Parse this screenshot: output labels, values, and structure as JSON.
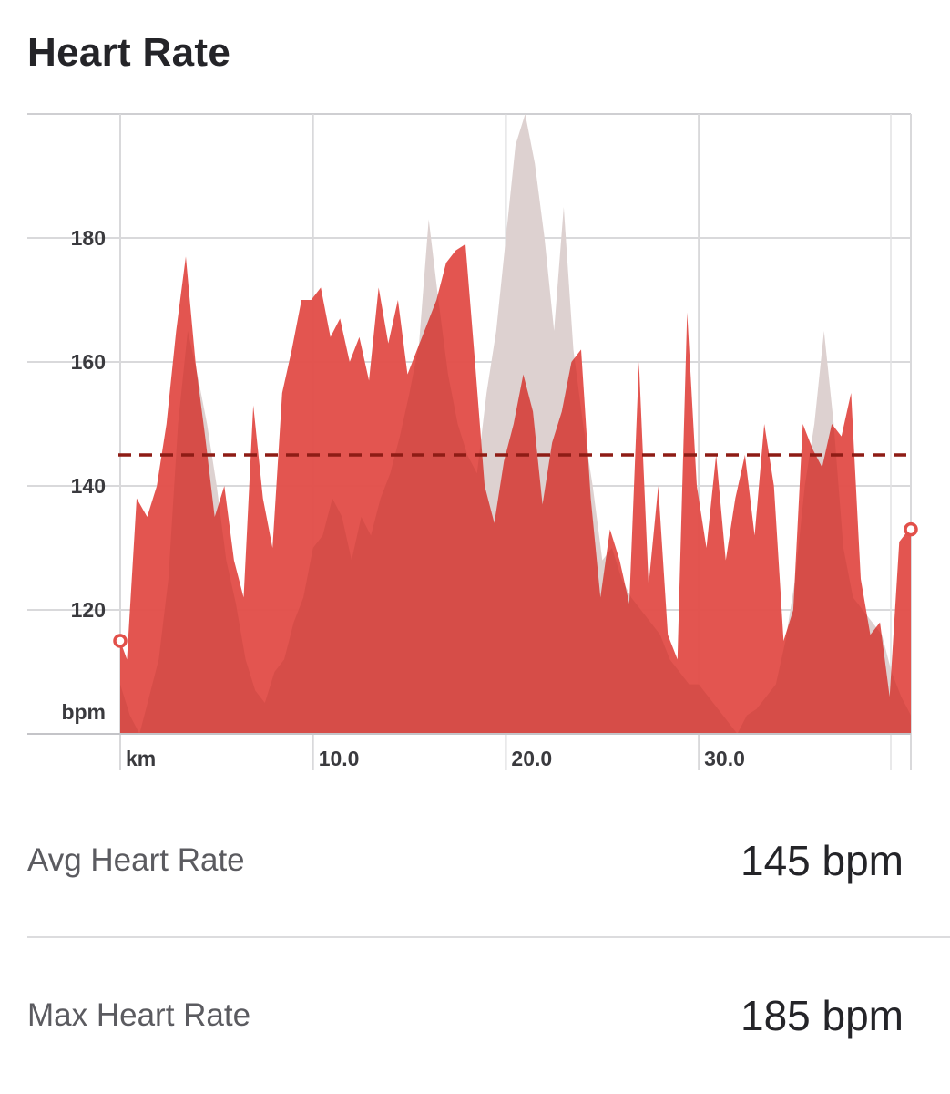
{
  "header": {
    "title": "Heart Rate"
  },
  "chart_data": {
    "type": "area",
    "title": "Heart Rate",
    "ylabel": "bpm",
    "xlabel": "km",
    "ylim": [
      100,
      200
    ],
    "xlim": [
      0,
      41
    ],
    "y_ticks": [
      120,
      140,
      160,
      180
    ],
    "x_ticks": [
      10,
      20,
      30
    ],
    "x_tick_labels": [
      "km",
      "10.0",
      "20.0",
      "30.0"
    ],
    "grid": true,
    "average_line": 145,
    "colors": {
      "primary": "#E2504A",
      "comparison": "#EBEBEB",
      "average": "#8E1C15",
      "marker": "#E2504A"
    },
    "series": [
      {
        "x": [
          0,
          0.35,
          0.85,
          1.4,
          1.9,
          2.4,
          2.9,
          3.4,
          3.9,
          4.4,
          4.9,
          5.4,
          5.9,
          6.4,
          6.9,
          7.4,
          7.9,
          8.4,
          8.9,
          9.4,
          9.9,
          10.4,
          10.9,
          11.4,
          11.9,
          12.4,
          12.9,
          13.4,
          13.9,
          14.4,
          14.9,
          15.4,
          15.9,
          16.4,
          16.9,
          17.4,
          17.9,
          18.4,
          18.9,
          19.4,
          19.9,
          20.4,
          20.9,
          21.4,
          21.9,
          22.4,
          22.9,
          23.4,
          23.9,
          24.4,
          24.9,
          25.4,
          25.9,
          26.4,
          26.9,
          27.4,
          27.9,
          28.4,
          28.9,
          29.4,
          29.9,
          30.4,
          30.9,
          31.4,
          31.9,
          32.4,
          32.9,
          33.4,
          33.9,
          34.4,
          34.9,
          35.4,
          35.9,
          36.4,
          36.9,
          37.4,
          37.9,
          38.4,
          38.9,
          39.4,
          39.9,
          40.4,
          40.9,
          41
        ],
        "values": [
          115,
          112,
          138,
          135,
          140,
          150,
          165,
          177,
          160,
          148,
          135,
          140,
          128,
          122,
          153,
          138,
          130,
          155,
          162,
          170,
          170,
          172,
          164,
          167,
          160,
          164,
          157,
          172,
          163,
          170,
          158,
          162,
          166,
          170,
          176,
          178,
          179,
          160,
          140,
          134,
          144,
          150,
          158,
          152,
          137,
          147,
          152,
          160,
          162,
          138,
          122,
          133,
          128,
          121,
          160,
          124,
          140,
          116,
          112,
          168,
          140,
          130,
          145,
          128,
          138,
          145,
          132,
          150,
          140,
          115,
          120,
          150,
          146,
          143,
          150,
          148,
          155,
          125,
          116,
          118,
          106,
          131,
          133,
          133
        ]
      },
      {
        "x": [
          0,
          0.5,
          1,
          1.5,
          2,
          2.5,
          3,
          3.5,
          4,
          4.5,
          5,
          5.5,
          6,
          6.5,
          7,
          7.5,
          8,
          8.5,
          9,
          9.5,
          10,
          10.5,
          11,
          11.5,
          12,
          12.5,
          13,
          13.5,
          14,
          14.5,
          15,
          15.5,
          16,
          16.5,
          17,
          17.5,
          18,
          18.5,
          19,
          19.5,
          20,
          20.5,
          21,
          21.5,
          22,
          22.5,
          23,
          23.5,
          24,
          24.5,
          25,
          25.5,
          26,
          26.5,
          27,
          27.5,
          28,
          28.5,
          29,
          29.5,
          30,
          30.5,
          31,
          31.5,
          32,
          32.5,
          33,
          33.5,
          34,
          34.5,
          35,
          35.5,
          36,
          36.5,
          37,
          37.5,
          38,
          38.5,
          39,
          39.5,
          40,
          40.5,
          41
        ],
        "values": [
          108,
          103,
          100,
          106,
          112,
          125,
          150,
          165,
          158,
          150,
          140,
          128,
          121,
          112,
          107,
          105,
          110,
          112,
          118,
          122,
          130,
          132,
          138,
          135,
          128,
          135,
          132,
          138,
          142,
          148,
          155,
          163,
          183,
          170,
          158,
          150,
          145,
          142,
          155,
          165,
          180,
          195,
          200,
          192,
          180,
          165,
          185,
          162,
          150,
          140,
          128,
          130,
          125,
          122,
          120,
          118,
          116,
          112,
          110,
          108,
          108,
          106,
          104,
          102,
          100,
          103,
          104,
          106,
          108,
          115,
          125,
          140,
          150,
          165,
          150,
          130,
          122,
          120,
          118,
          116,
          110,
          106,
          103
        ]
      }
    ],
    "markers": [
      {
        "x": 0,
        "y": 115
      },
      {
        "x": 41,
        "y": 133
      }
    ]
  },
  "stats": [
    {
      "label": "Avg Heart Rate",
      "value": "145 bpm"
    },
    {
      "label": "Max Heart Rate",
      "value": "185 bpm"
    }
  ]
}
